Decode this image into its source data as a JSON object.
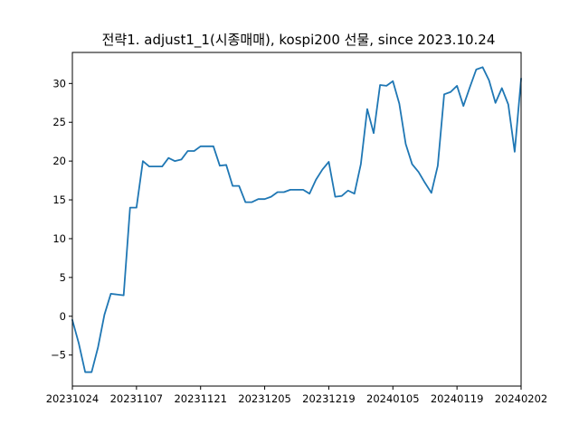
{
  "chart_data": {
    "type": "line",
    "title": "전략1. adjust1_1(시종매매), kospi200 선물, since 2023.10.24",
    "xlabel": "",
    "ylabel": "",
    "x_tick_labels": [
      "20231024",
      "20231107",
      "20231121",
      "20231205",
      "20231219",
      "20240105",
      "20240119",
      "20240202"
    ],
    "y_ticks": [
      -5,
      0,
      5,
      10,
      15,
      20,
      25,
      30
    ],
    "ylim": [
      -9,
      34
    ],
    "grid": false,
    "legend": "none",
    "colors": {
      "line": "#1f77b4"
    },
    "series": [
      {
        "values": [
          -0.5,
          -3.5,
          -7.2,
          -7.2,
          -4.0,
          0.2,
          2.9,
          2.8,
          2.7,
          14.0,
          14.0,
          20.0,
          19.3,
          19.3,
          19.3,
          20.4,
          20.0,
          20.2,
          21.3,
          21.3,
          21.9,
          21.9,
          21.9,
          19.4,
          19.5,
          16.8,
          16.8,
          14.7,
          14.7,
          15.1,
          15.1,
          15.4,
          16.0,
          16.0,
          16.3,
          16.3,
          16.3,
          15.8,
          17.6,
          18.9,
          19.9,
          15.4,
          15.5,
          16.2,
          15.8,
          19.6,
          26.7,
          23.6,
          29.8,
          29.7,
          30.3,
          27.4,
          22.2,
          19.6,
          18.6,
          17.2,
          15.9,
          19.4,
          28.6,
          28.9,
          29.7,
          27.1,
          29.5,
          31.8,
          32.1,
          30.4,
          27.5,
          29.4,
          27.3,
          21.2,
          30.6
        ]
      }
    ]
  }
}
